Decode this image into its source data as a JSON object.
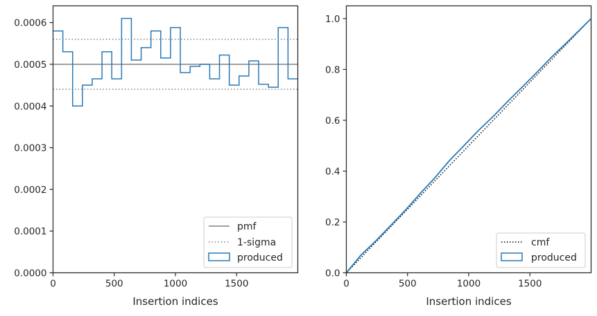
{
  "colors": {
    "produced": "#2878b5",
    "reference": "#808080",
    "cmf": "#000000",
    "axis": "#262626"
  },
  "chart_data": [
    {
      "type": "histogram",
      "xlabel": "Insertion indices",
      "ylabel": "",
      "xlim": [
        0,
        2000
      ],
      "ylim": [
        0,
        0.00064
      ],
      "xticks": [
        0,
        500,
        1000,
        1500
      ],
      "xtick_labels": [
        "0",
        "500",
        "1000",
        "1500"
      ],
      "yticks": [
        0,
        0.0001,
        0.0002,
        0.0003,
        0.0004,
        0.0005,
        0.0006
      ],
      "ytick_labels": [
        "0.0000",
        "0.0001",
        "0.0002",
        "0.0003",
        "0.0004",
        "0.0005",
        "0.0006"
      ],
      "pmf": 0.0005,
      "sigma_upper": 0.00056,
      "sigma_lower": 0.00044,
      "bin_edges": [
        0,
        40,
        80,
        120,
        160,
        200,
        240,
        280,
        320,
        360,
        400,
        440,
        480,
        520,
        560,
        600,
        640,
        680,
        720,
        760,
        800,
        840,
        880,
        920,
        960,
        1000,
        1040,
        1080,
        1120,
        1160,
        1200,
        1240,
        1280,
        1320,
        1360,
        1400,
        1440,
        1480,
        1520,
        1560,
        1600,
        1640,
        1680,
        1720,
        1760,
        1800,
        1840,
        1880,
        1920,
        1960,
        2000
      ],
      "values": [
        0.00058,
        0.00058,
        0.00053,
        0.00053,
        0.0004,
        0.0004,
        0.00045,
        0.00045,
        0.000465,
        0.000465,
        0.00053,
        0.00053,
        0.000465,
        0.000465,
        0.00061,
        0.00061,
        0.00051,
        0.00051,
        0.00054,
        0.00054,
        0.00058,
        0.00058,
        0.000515,
        0.000515,
        0.000588,
        0.000588,
        0.00048,
        0.00048,
        0.000495,
        0.000495,
        0.0005,
        0.0005,
        0.000465,
        0.000465,
        0.000522,
        0.000522,
        0.00045,
        0.00045,
        0.000472,
        0.000472,
        0.000508,
        0.000508,
        0.000452,
        0.000452,
        0.000445,
        0.000445,
        0.000588,
        0.000588,
        0.000465,
        0.000465
      ],
      "legend": {
        "position": "bottom-right",
        "entries": [
          "pmf",
          "1-sigma",
          "produced"
        ]
      }
    },
    {
      "type": "line",
      "xlabel": "Insertion indices",
      "ylabel": "",
      "xlim": [
        0,
        2000
      ],
      "ylim": [
        0,
        1.05
      ],
      "xticks": [
        0,
        500,
        1000,
        1500
      ],
      "xtick_labels": [
        "0",
        "500",
        "1000",
        "1500"
      ],
      "yticks": [
        0,
        0.2,
        0.4,
        0.6,
        0.8,
        1.0
      ],
      "ytick_labels": [
        "0.0",
        "0.2",
        "0.4",
        "0.6",
        "0.8",
        "1.0"
      ],
      "series": [
        {
          "name": "cmf",
          "style": "dotted",
          "x": [
            0,
            2000
          ],
          "y": [
            0,
            1.0
          ]
        },
        {
          "name": "produced",
          "style": "step",
          "x": [
            0,
            120,
            240,
            360,
            480,
            600,
            720,
            840,
            960,
            1080,
            1200,
            1320,
            1440,
            1560,
            1680,
            1800,
            1920,
            2000
          ],
          "y": [
            0,
            0.07,
            0.125,
            0.185,
            0.245,
            0.31,
            0.372,
            0.44,
            0.5,
            0.56,
            0.615,
            0.675,
            0.732,
            0.79,
            0.85,
            0.905,
            0.962,
            1.0
          ]
        }
      ],
      "legend": {
        "position": "bottom-right",
        "entries": [
          "cmf",
          "produced"
        ]
      }
    }
  ]
}
